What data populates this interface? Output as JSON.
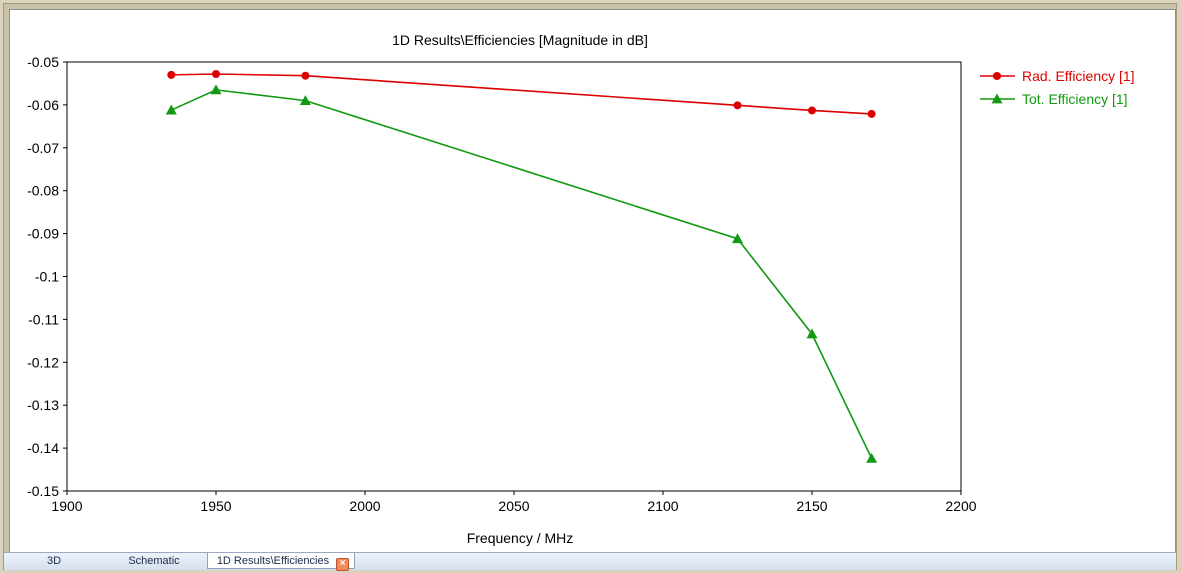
{
  "chart_data": {
    "type": "line",
    "title": "1D Results\\Efficiencies [Magnitude in dB]",
    "xlabel": "Frequency / MHz",
    "ylabel": "",
    "xlim": [
      1900,
      2200
    ],
    "ylim": [
      -0.15,
      -0.05
    ],
    "x_ticks": [
      "1900",
      "1950",
      "2000",
      "2050",
      "2100",
      "2150",
      "2200"
    ],
    "y_ticks": [
      "-0.05",
      "-0.06",
      "-0.07",
      "-0.08",
      "-0.09",
      "-0.1",
      "-0.11",
      "-0.12",
      "-0.13",
      "-0.14",
      "-0.15"
    ],
    "grid": true,
    "legend_position": "right",
    "series": [
      {
        "name": "Rad. Efficiency [1]",
        "color": "#dd0000",
        "marker": "circle",
        "x": [
          1935,
          1950,
          1980,
          2125,
          2150,
          2170
        ],
        "y": [
          -0.053,
          -0.0528,
          -0.0532,
          -0.0601,
          -0.0613,
          -0.0621
        ]
      },
      {
        "name": "Tot. Efficiency [1]",
        "color": "#119911",
        "marker": "triangle",
        "x": [
          1935,
          1950,
          1980,
          2125,
          2150,
          2170
        ],
        "y": [
          -0.0612,
          -0.0565,
          -0.059,
          -0.0912,
          -0.1134,
          -0.1424
        ]
      }
    ]
  },
  "tabs": [
    {
      "label": "3D"
    },
    {
      "label": "Schematic"
    },
    {
      "label": "1D Results\\Efficiencies"
    }
  ],
  "icons": {
    "tab_close": "close-icon"
  }
}
